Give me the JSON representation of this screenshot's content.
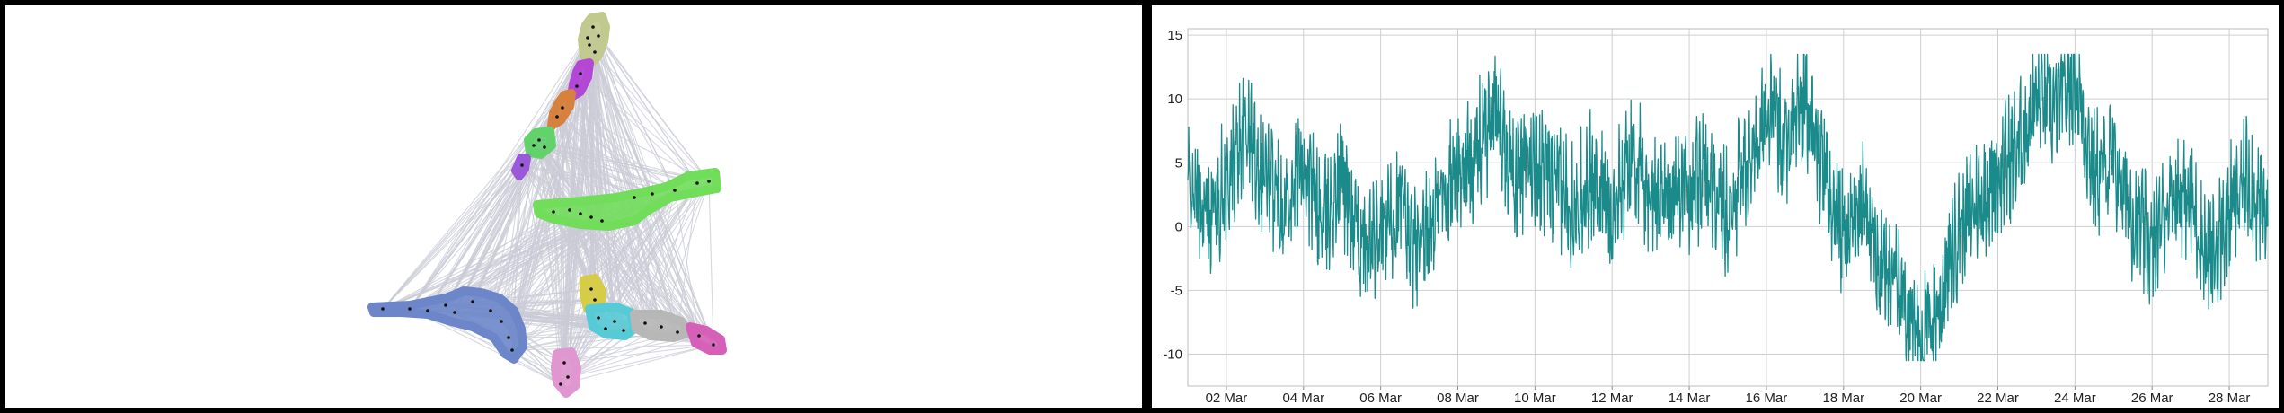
{
  "network_graph": {
    "edge_color": "#c9cbd6",
    "node_color": "#111111",
    "clusters": [
      {
        "name": "olive-cluster",
        "color": "#c2c98e"
      },
      {
        "name": "purple-cluster",
        "color": "#b347d6"
      },
      {
        "name": "orange-cluster",
        "color": "#d7813f"
      },
      {
        "name": "green-cluster",
        "color": "#62d26b"
      },
      {
        "name": "small-violet-cluster",
        "color": "#9a59d9"
      },
      {
        "name": "large-green-cluster",
        "color": "#71dd5a"
      },
      {
        "name": "blue-cluster",
        "color": "#6c86c9"
      },
      {
        "name": "yellow-cluster",
        "color": "#d7cc45"
      },
      {
        "name": "cyan-cluster",
        "color": "#56cbd6"
      },
      {
        "name": "gray-cluster",
        "color": "#b7b7b7"
      },
      {
        "name": "magenta-cluster",
        "color": "#d65fb7"
      },
      {
        "name": "pink-cluster",
        "color": "#e096cf"
      }
    ]
  },
  "chart_data": {
    "type": "line",
    "title": "",
    "xlabel": "",
    "ylabel": "",
    "line_color": "#1a8a8a",
    "grid": true,
    "xlim": [
      "2024-03-01",
      "2024-03-29"
    ],
    "ylim": [
      -12.5,
      15.5
    ],
    "y_ticks": [
      -10,
      -5,
      0,
      5,
      10,
      15
    ],
    "x_ticks": [
      {
        "date": "2024-03-02",
        "label": "02 Mar"
      },
      {
        "date": "2024-03-04",
        "label": "04 Mar"
      },
      {
        "date": "2024-03-06",
        "label": "06 Mar"
      },
      {
        "date": "2024-03-08",
        "label": "08 Mar"
      },
      {
        "date": "2024-03-10",
        "label": "10 Mar"
      },
      {
        "date": "2024-03-12",
        "label": "12 Mar"
      },
      {
        "date": "2024-03-14",
        "label": "14 Mar"
      },
      {
        "date": "2024-03-16",
        "label": "16 Mar"
      },
      {
        "date": "2024-03-18",
        "label": "18 Mar"
      },
      {
        "date": "2024-03-20",
        "label": "20 Mar"
      },
      {
        "date": "2024-03-22",
        "label": "22 Mar"
      },
      {
        "date": "2024-03-24",
        "label": "24 Mar"
      },
      {
        "date": "2024-03-26",
        "label": "26 Mar"
      },
      {
        "date": "2024-03-28",
        "label": "28 Mar"
      }
    ],
    "series": [
      {
        "x": [
          "2024-03-01",
          "2024-03-01T12:00",
          "2024-03-02",
          "2024-03-02T12:00",
          "2024-03-03",
          "2024-03-03T12:00",
          "2024-03-04",
          "2024-03-04T12:00",
          "2024-03-05",
          "2024-03-05T12:00",
          "2024-03-06",
          "2024-03-06T12:00",
          "2024-03-07",
          "2024-03-07T12:00",
          "2024-03-08",
          "2024-03-08T12:00",
          "2024-03-09",
          "2024-03-09T12:00",
          "2024-03-10",
          "2024-03-10T12:00",
          "2024-03-11",
          "2024-03-11T12:00",
          "2024-03-12",
          "2024-03-12T12:00",
          "2024-03-13",
          "2024-03-13T12:00",
          "2024-03-14",
          "2024-03-14T12:00",
          "2024-03-15",
          "2024-03-15T12:00",
          "2024-03-16",
          "2024-03-16T12:00",
          "2024-03-17",
          "2024-03-17T12:00",
          "2024-03-18",
          "2024-03-18T12:00",
          "2024-03-19",
          "2024-03-19T12:00",
          "2024-03-20",
          "2024-03-20T12:00",
          "2024-03-21",
          "2024-03-21T12:00",
          "2024-03-22",
          "2024-03-22T12:00",
          "2024-03-23",
          "2024-03-23T12:00",
          "2024-03-24",
          "2024-03-24T12:00",
          "2024-03-25",
          "2024-03-25T12:00",
          "2024-03-26",
          "2024-03-26T12:00",
          "2024-03-27",
          "2024-03-27T12:00",
          "2024-03-28",
          "2024-03-28T12:00",
          "2024-03-29"
        ],
        "values": [
          3,
          1,
          3,
          8,
          4,
          2,
          5,
          0,
          4,
          -2,
          -1,
          2,
          -3,
          2,
          4,
          6,
          9,
          4,
          5,
          3,
          2,
          4,
          1,
          6,
          2,
          3,
          3,
          4,
          1,
          5,
          9,
          7,
          10,
          4,
          -1,
          2,
          -3,
          -5,
          -9,
          -6,
          0,
          2,
          4,
          6,
          10,
          9,
          12,
          4,
          5,
          1,
          -2,
          3,
          2,
          -3,
          1,
          4,
          0
        ]
      }
    ]
  }
}
